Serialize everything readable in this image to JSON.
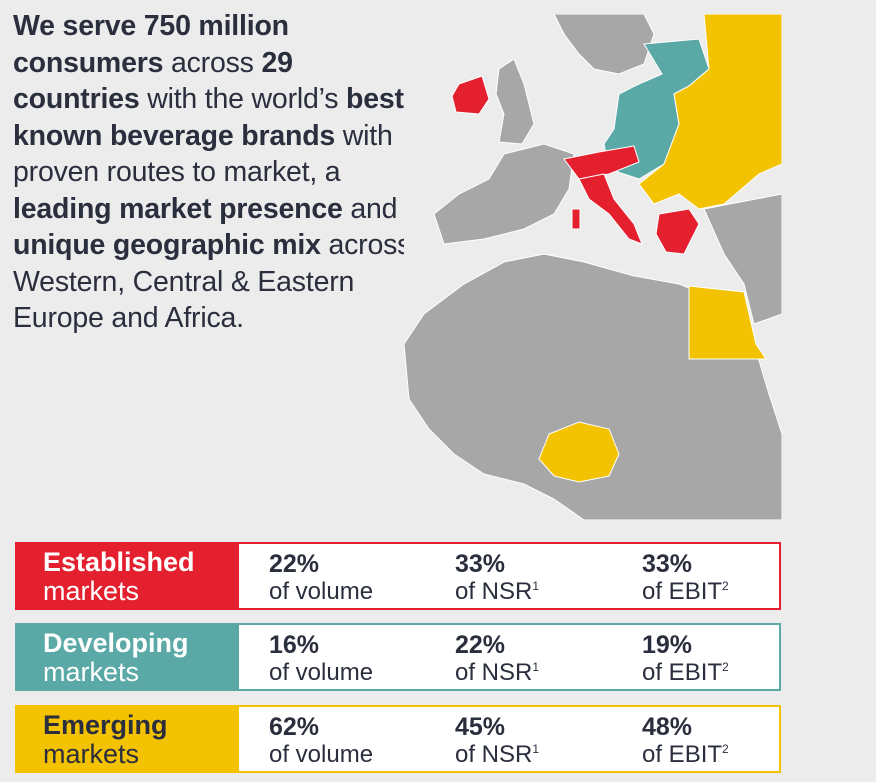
{
  "intro": [
    {
      "text": "We serve 750 million",
      "bold": true
    },
    {
      "text": " consumers",
      "bold": true
    },
    {
      "text": " across  ",
      "bold": false
    },
    {
      "text": "29 countries",
      "bold": true
    },
    {
      "text": " with the world’s ",
      "bold": false
    },
    {
      "text": "best-known beverage brands",
      "bold": true
    },
    {
      "text": " with proven routes to market, a ",
      "bold": false
    },
    {
      "text": "leading market presence",
      "bold": true
    },
    {
      "text": " and a ",
      "bold": false
    },
    {
      "text": "unique geographic mix",
      "bold": true
    },
    {
      "text": " across Western, Central & Eastern Europe and Africa.",
      "bold": false
    }
  ],
  "colors": {
    "established": "#e4202f",
    "developing": "#5aa9a6",
    "emerging": "#f3c200",
    "land": "#a7a7a7",
    "sea": "#ececec"
  },
  "segments": [
    {
      "name_bold": "Established",
      "name_rest": "markets",
      "stats": [
        {
          "value": "22%",
          "desc": "of volume",
          "note": ""
        },
        {
          "value": "33%",
          "desc": "of NSR",
          "note": "1"
        },
        {
          "value": "33%",
          "desc": "of EBIT",
          "note": "2"
        }
      ]
    },
    {
      "name_bold": "Developing",
      "name_rest": "markets",
      "stats": [
        {
          "value": "16%",
          "desc": "of volume",
          "note": ""
        },
        {
          "value": "22%",
          "desc": "of NSR",
          "note": "1"
        },
        {
          "value": "19%",
          "desc": "of EBIT",
          "note": "2"
        }
      ]
    },
    {
      "name_bold": "Emerging",
      "name_rest": "markets",
      "stats": [
        {
          "value": "62%",
          "desc": "of volume",
          "note": ""
        },
        {
          "value": "45%",
          "desc": "of NSR",
          "note": "1"
        },
        {
          "value": "48%",
          "desc": "of EBIT",
          "note": "2"
        }
      ]
    }
  ]
}
